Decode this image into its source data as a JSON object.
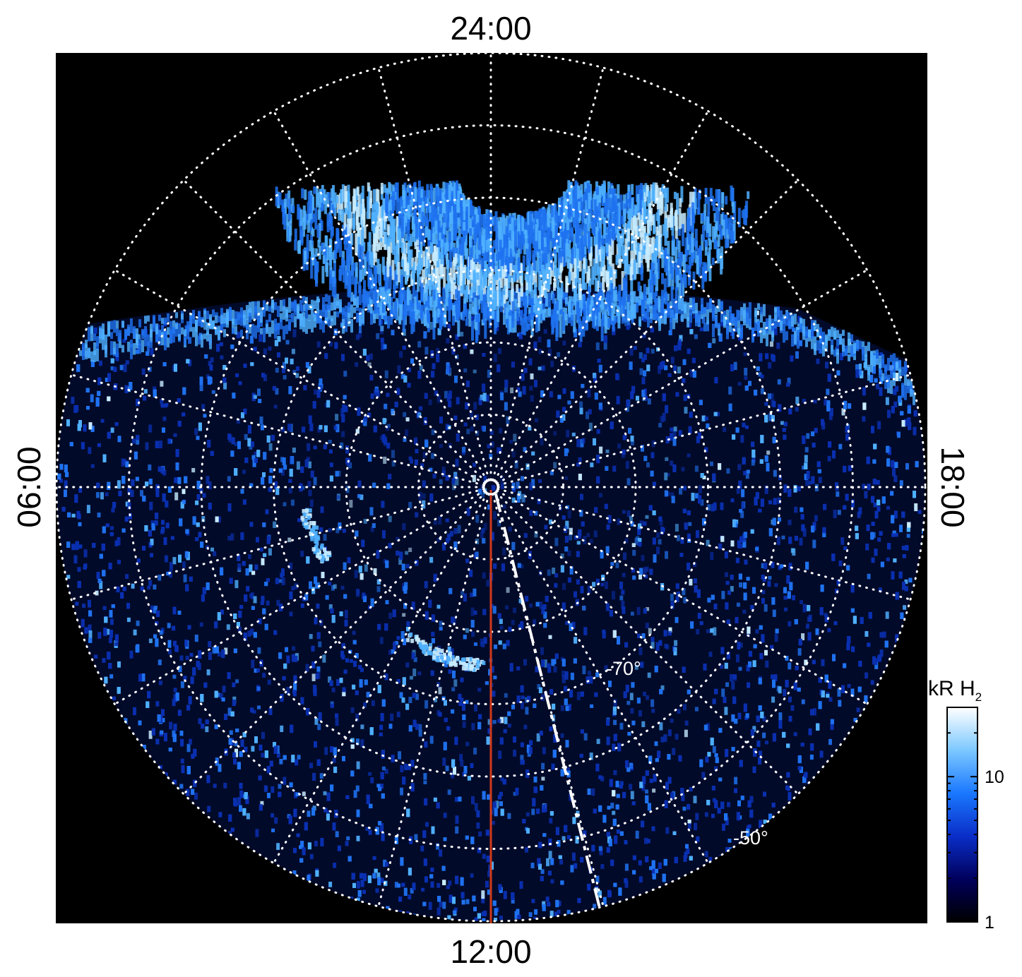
{
  "figure": {
    "background": "#000000",
    "local_time_labels": {
      "top": "24:00",
      "bottom": "12:00",
      "left": "06:00",
      "right": "18:00"
    },
    "latitude_labels": [
      {
        "text": "-70°",
        "latitude": -70
      },
      {
        "text": "-50°",
        "latitude": -50
      }
    ],
    "grid": {
      "style": "dotted",
      "color": "#ffffff",
      "latitude_circles_deg": [
        -80,
        -70,
        -60,
        -50,
        -40,
        -30
      ],
      "meridian_step_hours": 1,
      "outer_boundary_deg": -30
    },
    "lines": [
      {
        "name": "noon-meridian",
        "color": "#d03a1a",
        "style": "solid"
      },
      {
        "name": "dashed-meridian",
        "color": "#ffffff",
        "style": "dash-dot"
      }
    ]
  },
  "colorbar": {
    "title": "kR H",
    "title_subscript": "2",
    "scale": "log",
    "range": [
      1,
      30
    ],
    "ticks": [
      {
        "value": 1,
        "label": "1"
      },
      {
        "value": 10,
        "label": "10"
      }
    ],
    "colors": [
      "#000000",
      "#00005c",
      "#0a2ec8",
      "#1a78ff",
      "#7cc8ff",
      "#ffffff"
    ]
  },
  "emission": {
    "colors": {
      "faint": "#0a30b0",
      "mid": "#1f72f0",
      "bright": "#4fb0ff",
      "peak": "#c8ecff"
    }
  }
}
